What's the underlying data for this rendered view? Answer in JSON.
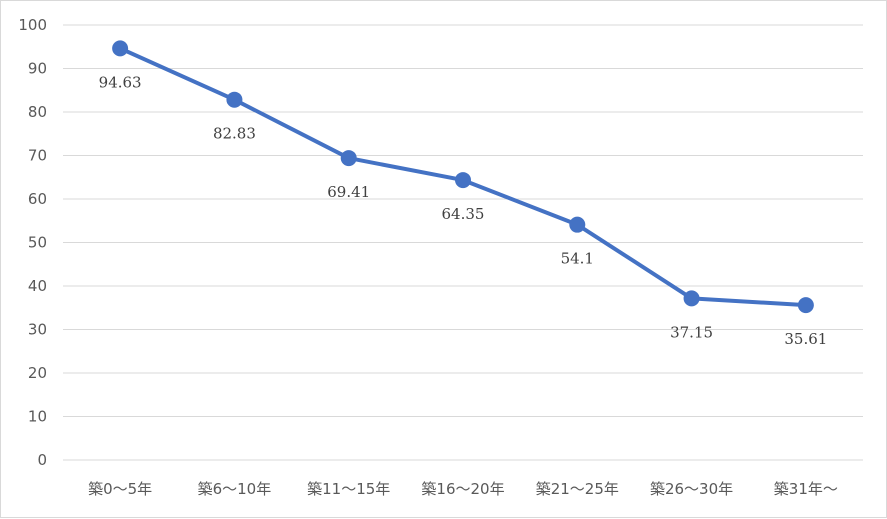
{
  "chart_data": {
    "type": "line",
    "categories": [
      "築0～5年",
      "築6～10年",
      "築11～15年",
      "築16～20年",
      "築21～25年",
      "築26～30年",
      "築31年～"
    ],
    "series": [
      {
        "values": [
          94.63,
          82.83,
          69.41,
          64.35,
          54.1,
          37.15,
          35.61
        ],
        "labels": [
          "94.63",
          "82.83",
          "69.41",
          "64.35",
          "54.1",
          "37.15",
          "35.61"
        ],
        "color": "#4472c4"
      }
    ],
    "ylim": [
      0,
      100
    ],
    "yticks": [
      "0",
      "10",
      "20",
      "30",
      "40",
      "50",
      "60",
      "70",
      "80",
      "90",
      "100"
    ],
    "grid": "horizontal",
    "legend": "none",
    "data_label_position": "below",
    "marker": "circle"
  }
}
